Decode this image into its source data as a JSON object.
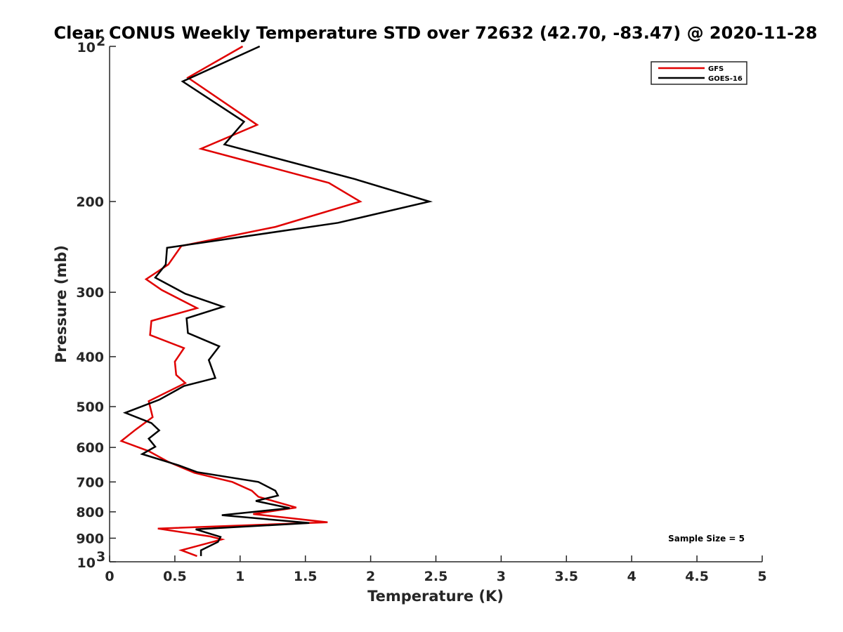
{
  "chart_data": {
    "type": "line",
    "title": "Clear CONUS Weekly Temperature STD over 72632 (42.70, -83.47) @ 2020-11-28",
    "xlabel": "Temperature (K)",
    "ylabel": "Pressure (mb)",
    "xlim": [
      0,
      5
    ],
    "ylim": [
      100,
      1000
    ],
    "yscale": "log",
    "yreversed": true,
    "grid": false,
    "legend_position": "top-right",
    "x_ticks": [
      "0",
      "0.5",
      "1",
      "1.5",
      "2",
      "2.5",
      "3",
      "3.5",
      "4",
      "4.5",
      "5"
    ],
    "y_ticks": [
      {
        "value": 100,
        "base": "10",
        "exp": "2"
      },
      {
        "value": 200,
        "label": "200"
      },
      {
        "value": 300,
        "label": "300"
      },
      {
        "value": 400,
        "label": "400"
      },
      {
        "value": 500,
        "label": "500"
      },
      {
        "value": 600,
        "label": "600"
      },
      {
        "value": 700,
        "label": "700"
      },
      {
        "value": 800,
        "label": "800"
      },
      {
        "value": 900,
        "label": "900"
      },
      {
        "value": 1000,
        "base": "10",
        "exp": "3"
      }
    ],
    "series": [
      {
        "name": "GFS",
        "color": "#e00000",
        "points": [
          [
            1.02,
            100
          ],
          [
            0.6,
            115
          ],
          [
            1.13,
            142
          ],
          [
            0.7,
            158
          ],
          [
            1.68,
            184
          ],
          [
            1.92,
            200
          ],
          [
            1.27,
            224
          ],
          [
            0.55,
            244
          ],
          [
            0.45,
            265
          ],
          [
            0.28,
            283
          ],
          [
            0.4,
            297
          ],
          [
            0.67,
            322
          ],
          [
            0.32,
            341
          ],
          [
            0.31,
            363
          ],
          [
            0.57,
            385
          ],
          [
            0.5,
            409
          ],
          [
            0.51,
            434
          ],
          [
            0.58,
            450
          ],
          [
            0.3,
            488
          ],
          [
            0.33,
            524
          ],
          [
            0.2,
            554
          ],
          [
            0.09,
            583
          ],
          [
            0.3,
            610
          ],
          [
            0.45,
            640
          ],
          [
            0.65,
            672
          ],
          [
            0.94,
            700
          ],
          [
            1.09,
            728
          ],
          [
            1.14,
            748
          ],
          [
            1.43,
            785
          ],
          [
            1.1,
            808
          ],
          [
            1.67,
            838
          ],
          [
            0.37,
            862
          ],
          [
            0.77,
            893
          ],
          [
            0.86,
            905
          ],
          [
            0.55,
            950
          ],
          [
            0.67,
            975
          ]
        ]
      },
      {
        "name": "GOES-16",
        "color": "#000000",
        "points": [
          [
            1.15,
            100
          ],
          [
            0.56,
            117
          ],
          [
            1.03,
            140
          ],
          [
            0.88,
            155
          ],
          [
            1.88,
            181
          ],
          [
            2.45,
            200
          ],
          [
            1.75,
            220
          ],
          [
            0.44,
            246
          ],
          [
            0.43,
            265
          ],
          [
            0.35,
            281
          ],
          [
            0.58,
            302
          ],
          [
            0.87,
            320
          ],
          [
            0.59,
            337
          ],
          [
            0.6,
            360
          ],
          [
            0.84,
            382
          ],
          [
            0.76,
            406
          ],
          [
            0.81,
            440
          ],
          [
            0.57,
            456
          ],
          [
            0.38,
            485
          ],
          [
            0.12,
            514
          ],
          [
            0.32,
            538
          ],
          [
            0.38,
            556
          ],
          [
            0.3,
            577
          ],
          [
            0.35,
            598
          ],
          [
            0.25,
            618
          ],
          [
            0.53,
            650
          ],
          [
            0.67,
            670
          ],
          [
            1.14,
            700
          ],
          [
            1.27,
            728
          ],
          [
            1.29,
            744
          ],
          [
            1.12,
            762
          ],
          [
            1.38,
            787
          ],
          [
            0.86,
            812
          ],
          [
            1.53,
            841
          ],
          [
            0.66,
            865
          ],
          [
            0.85,
            895
          ],
          [
            0.83,
            915
          ],
          [
            0.7,
            950
          ],
          [
            0.7,
            975
          ]
        ]
      }
    ],
    "annotations": [
      "Sample Size = 5"
    ]
  }
}
